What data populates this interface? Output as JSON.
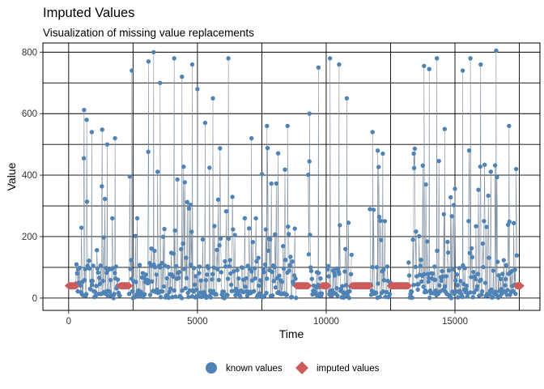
{
  "chart_data": {
    "type": "scatter",
    "title": "Imputed Values",
    "subtitle": "Visualization of missing value replacements",
    "xlabel": "Time",
    "ylabel": "Value",
    "xlim": [
      -1000,
      18300
    ],
    "ylim": [
      -40,
      830
    ],
    "xticks": [
      0,
      5000,
      10000,
      15000
    ],
    "yticks": [
      0,
      200,
      400,
      600,
      800
    ],
    "xgrid": [
      0,
      2500,
      5000,
      7500,
      10000,
      12500,
      15000,
      17500
    ],
    "ygrid": [
      0,
      100,
      200,
      300,
      400,
      500,
      600,
      700,
      800
    ],
    "grid": true,
    "legend_position": "bottom",
    "series": [
      {
        "name": "known values",
        "color": "#4f83b6",
        "marker": "circle",
        "segments": [
          {
            "start": 280,
            "end": 2000,
            "peaks": [
              [
                600,
                612
              ],
              [
                700,
                580
              ],
              [
                900,
                540
              ],
              [
                1300,
                548
              ],
              [
                1500,
                500
              ],
              [
                1800,
                520
              ]
            ]
          },
          {
            "start": 2350,
            "end": 8850,
            "peaks": [
              [
                2450,
                740
              ],
              [
                3100,
                770
              ],
              [
                3300,
                800
              ],
              [
                3550,
                700
              ],
              [
                4100,
                780
              ],
              [
                4400,
                720
              ],
              [
                4800,
                760
              ],
              [
                5000,
                680
              ],
              [
                5300,
                570
              ],
              [
                5600,
                650
              ],
              [
                6200,
                780
              ],
              [
                7100,
                520
              ],
              [
                7700,
                560
              ],
              [
                8500,
                560
              ]
            ]
          },
          {
            "start": 9300,
            "end": 9850,
            "peaks": [
              [
                9350,
                600
              ],
              [
                9700,
                750
              ]
            ]
          },
          {
            "start": 10050,
            "end": 11000,
            "peaks": [
              [
                10150,
                780
              ],
              [
                10500,
                760
              ],
              [
                10800,
                650
              ]
            ]
          },
          {
            "start": 11700,
            "end": 12500,
            "peaks": [
              [
                11800,
                540
              ],
              [
                12000,
                480
              ],
              [
                12200,
                470
              ]
            ]
          },
          {
            "start": 13200,
            "end": 17400,
            "peaks": [
              [
                13400,
                470
              ],
              [
                13800,
                755
              ],
              [
                14000,
                745
              ],
              [
                14300,
                780
              ],
              [
                14600,
                550
              ],
              [
                15300,
                740
              ],
              [
                15600,
                780
              ],
              [
                16000,
                760
              ],
              [
                16600,
                805
              ],
              [
                17100,
                560
              ]
            ]
          }
        ]
      },
      {
        "name": "imputed values",
        "color": "#cd5c5c",
        "marker": "diamond",
        "y": 40,
        "ranges": [
          [
            0,
            280
          ],
          [
            2000,
            2350
          ],
          [
            8850,
            9300
          ],
          [
            9850,
            10050
          ],
          [
            11000,
            11700
          ],
          [
            12500,
            13200
          ],
          [
            17400,
            17550
          ]
        ]
      }
    ]
  }
}
